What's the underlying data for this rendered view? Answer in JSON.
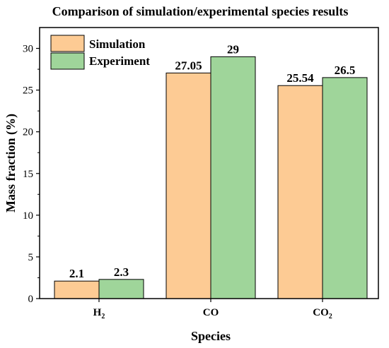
{
  "chart_data": {
    "type": "bar",
    "title": "Comparison of simulation/experimental species results",
    "xlabel": "Species",
    "ylabel": "Mass fraction (%)",
    "categories": [
      {
        "base": "H",
        "sub": "2"
      },
      {
        "base": "CO",
        "sub": ""
      },
      {
        "base": "CO",
        "sub": "2"
      }
    ],
    "series": [
      {
        "name": "Simulation",
        "color": "#FDCB94",
        "values": [
          2.1,
          27.05,
          25.54
        ],
        "labels": [
          "2.1",
          "27.05",
          "25.54"
        ]
      },
      {
        "name": "Experiment",
        "color": "#9FD59A",
        "values": [
          2.3,
          29,
          26.5
        ],
        "labels": [
          "2.3",
          "29",
          "26.5"
        ]
      }
    ],
    "ylim": [
      0,
      32.5
    ],
    "yticks": [
      0,
      5,
      10,
      15,
      20,
      25,
      30
    ],
    "legend_position": "top-left",
    "grid": false
  }
}
